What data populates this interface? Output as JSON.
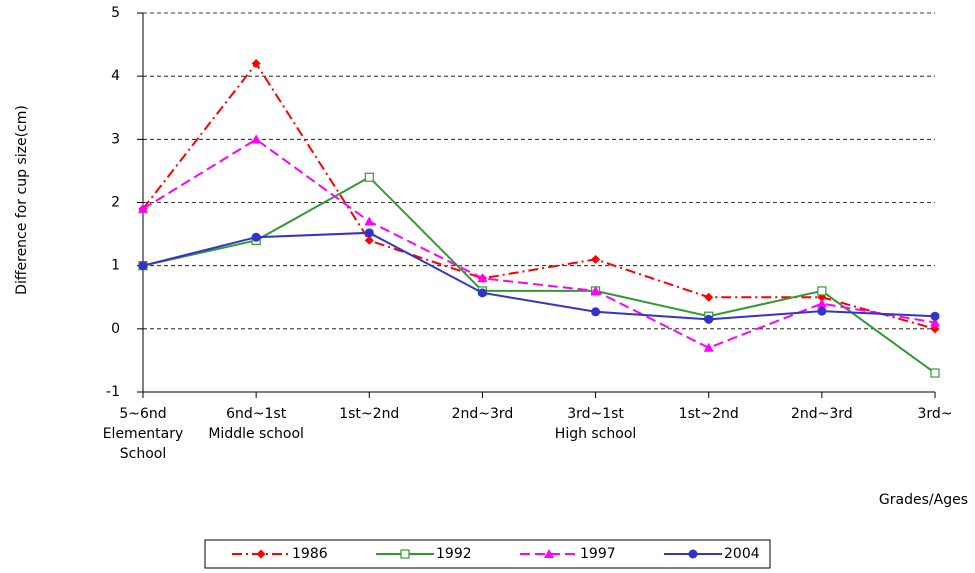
{
  "chart_data": {
    "type": "line",
    "y_label": "Difference for cup size(cm)",
    "x_label": "Grades/Ages",
    "categories": [
      "5~6nd\nElementary\nSchool",
      "6nd~1st\nMiddle school",
      "1st~2nd",
      "2nd~3rd",
      "3rd~1st\nHigh school",
      "1st~2nd",
      "2nd~3rd",
      "3rd~"
    ],
    "series": [
      {
        "name": "1986",
        "color": "#ff0000",
        "dash": "dash-dot",
        "marker": "diamond",
        "values": [
          1.9,
          4.2,
          1.4,
          0.8,
          1.1,
          0.5,
          0.5,
          0.0
        ]
      },
      {
        "name": "1992",
        "color": "#339933",
        "dash": "solid",
        "marker": "open-square",
        "values": [
          1.0,
          1.4,
          2.4,
          0.6,
          0.6,
          0.2,
          0.6,
          -0.7
        ]
      },
      {
        "name": "1997",
        "color": "#ff00ff",
        "dash": "dash",
        "marker": "triangle",
        "values": [
          1.9,
          3.0,
          1.7,
          0.8,
          0.6,
          -0.3,
          0.4,
          0.1
        ]
      },
      {
        "name": "2004",
        "color": "#3333cc",
        "dash": "solid",
        "marker": "circle",
        "values": [
          1.0,
          1.45,
          1.52,
          0.57,
          0.27,
          0.15,
          0.28,
          0.2
        ]
      }
    ],
    "ylim": [
      -1,
      5
    ],
    "yticks": [
      -1,
      0,
      1,
      2,
      3,
      4,
      5
    ],
    "grid": true,
    "legend": "bottom"
  }
}
